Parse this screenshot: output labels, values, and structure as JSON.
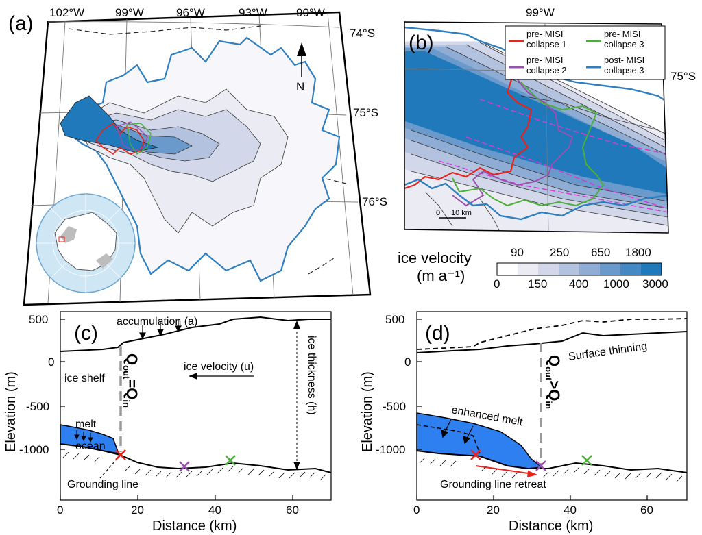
{
  "panel_a": {
    "label": "(a)",
    "lon_ticks": [
      "102°W",
      "99°W",
      "96°W",
      "93°W",
      "90°W"
    ],
    "lat_ticks": [
      "74°S",
      "75°S",
      "76°S"
    ],
    "north_label": "N"
  },
  "panel_b": {
    "label": "(b)",
    "lon_tick": "99°W",
    "lat_tick": "75°S",
    "scale_bar": [
      "0",
      "10 km"
    ],
    "legend": [
      {
        "line1": "pre- MISI",
        "line2": "collapse 1",
        "color": "#e8221c"
      },
      {
        "line1": "pre- MISI",
        "line2": "collapse 3",
        "color": "#4caf3a"
      },
      {
        "line1": "pre- MISI",
        "line2": "collapse 2",
        "color": "#9b4fb0"
      },
      {
        "line1": "post- MISI",
        "line2": "collapse 3",
        "color": "#2f7fc0"
      }
    ]
  },
  "colorbar": {
    "title_line1": "ice velocity",
    "title_line2": "(m a⁻¹)",
    "top_labels": [
      "90",
      "250",
      "650",
      "1800"
    ],
    "bottom_labels": [
      "0",
      "150",
      "400",
      "1000",
      "3000"
    ],
    "colors": [
      "#ffffff",
      "#ebebf4",
      "#d3d7ea",
      "#b3c2de",
      "#8fadd4",
      "#6a9acb",
      "#4488c4",
      "#1f79ba"
    ]
  },
  "panel_c": {
    "label": "(c)",
    "ylabel": "Elevation (m)",
    "xlabel": "Distance (km)",
    "y_ticks": [
      "500",
      "0",
      "-500",
      "-1000"
    ],
    "x_ticks": [
      "0",
      "20",
      "40",
      "60"
    ],
    "annotations": {
      "accumulation": "accumulation (a)",
      "ice_velocity": "ice velocity (u)",
      "ice_shelf": "ice shelf",
      "ice_thickness": "ice thickness (h)",
      "melt": "melt",
      "ocean": "ocean",
      "grounding_line": "Grounding line",
      "flux": "Q",
      "flux_out_sub": "out",
      "flux_in_sub": "in",
      "flux_rel": "="
    }
  },
  "panel_d": {
    "label": "(d)",
    "ylabel": "Elevation (m)",
    "xlabel": "Distance (km)",
    "y_ticks": [
      "500",
      "0",
      "-500",
      "-1000"
    ],
    "x_ticks": [
      "0",
      "20",
      "40",
      "60"
    ],
    "annotations": {
      "surface_thinning": "Surface thinning",
      "enhanced_melt": "enhanced melt",
      "grounding_line_retreat": "Grounding line retreat",
      "flux": "Q",
      "flux_out_sub": "out",
      "flux_in_sub": "in",
      "flux_rel": ">"
    }
  }
}
